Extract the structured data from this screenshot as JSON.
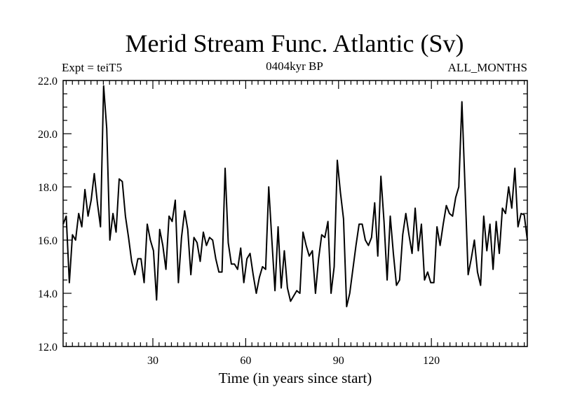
{
  "chart_data": {
    "type": "line",
    "title": "Merid Stream Func. Atlantic (Sv)",
    "subtitle_left": "Expt = teiT5",
    "subtitle_center": "0404kyr BP",
    "subtitle_right": "ALL_MONTHS",
    "xlabel": "Time (in years since start)",
    "ylabel": "",
    "xlim": [
      1,
      151
    ],
    "ylim": [
      12,
      22
    ],
    "xticks": [
      30,
      60,
      90,
      120
    ],
    "yticks": [
      12,
      14,
      16,
      18,
      20,
      22
    ],
    "ytick_labels": [
      "12.0",
      "14.0",
      "16.0",
      "18.0",
      "20.0",
      "22.0"
    ],
    "series": [
      {
        "name": "Merid Stream Func.",
        "color": "#000000",
        "values": [
          16.6,
          16.9,
          14.4,
          16.2,
          16.0,
          17.0,
          16.5,
          17.9,
          16.9,
          17.5,
          18.5,
          17.4,
          16.5,
          21.8,
          20.2,
          16.0,
          17.0,
          16.3,
          18.3,
          18.2,
          16.9,
          16.1,
          15.2,
          14.7,
          15.3,
          15.3,
          14.4,
          16.6,
          16.0,
          15.6,
          13.75,
          16.4,
          15.8,
          14.9,
          16.9,
          16.7,
          17.5,
          14.4,
          16.1,
          17.1,
          16.4,
          14.7,
          16.1,
          15.9,
          15.2,
          16.3,
          15.8,
          16.1,
          16.0,
          15.3,
          14.8,
          14.8,
          18.7,
          15.9,
          15.1,
          15.1,
          14.9,
          15.7,
          14.4,
          15.3,
          15.5,
          14.7,
          14.0,
          14.6,
          15.0,
          14.9,
          18.0,
          16.0,
          14.1,
          16.5,
          14.2,
          15.6,
          14.2,
          13.7,
          13.9,
          14.1,
          14.0,
          16.3,
          15.8,
          15.4,
          15.6,
          14.0,
          15.3,
          16.2,
          16.1,
          16.7,
          14.0,
          15.0,
          19.0,
          17.8,
          16.8,
          13.5,
          14.0,
          14.9,
          15.8,
          16.6,
          16.6,
          16.0,
          15.8,
          16.1,
          17.4,
          15.4,
          18.4,
          16.7,
          14.5,
          16.9,
          15.5,
          14.3,
          14.5,
          16.2,
          17.0,
          16.2,
          15.5,
          17.2,
          15.6,
          16.6,
          14.5,
          14.8,
          14.4,
          14.4,
          16.5,
          15.8,
          16.6,
          17.3,
          17.0,
          16.9,
          17.6,
          18.0,
          21.2,
          18.0,
          14.7,
          15.3,
          16.0,
          14.8,
          14.3,
          16.9,
          15.6,
          16.6,
          14.9,
          16.7,
          15.5,
          17.2,
          17.0,
          18.0,
          17.2,
          18.7,
          16.5,
          17.0,
          16.95,
          16.0
        ]
      }
    ]
  }
}
